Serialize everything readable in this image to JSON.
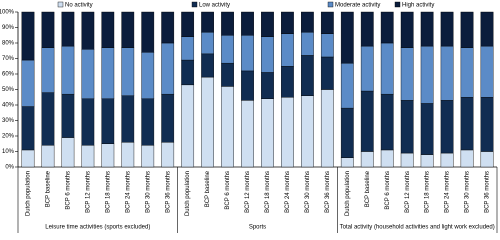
{
  "chart_data": {
    "type": "stacked_bar",
    "groups": [
      {
        "label": "Leisure time activities (sports excluded)",
        "categories": [
          "Dutch population",
          "BCP baseline",
          "BCP 6 months",
          "BCP 12 months",
          "BCP 18 months",
          "BCP 24 months",
          "BCP 30 months",
          "BCP 36 months"
        ]
      },
      {
        "label": "Sports",
        "categories": [
          "Dutch population",
          "BCP baseline",
          "BCP 6 months",
          "BCP 12 months",
          "BCP 18 months",
          "BCP 24 months",
          "BCP 30 months",
          "BCP 36 months"
        ]
      },
      {
        "label": "Total activity (household activities and light work excluded)",
        "categories": [
          "Dutch population",
          "BCP baseline",
          "BCP 6 months",
          "BCP 12 months",
          "BCP 18 months",
          "BCP 24 months",
          "BCP 30 months",
          "BCP 36 months"
        ]
      }
    ],
    "series": [
      {
        "name": "No activity",
        "color": "#cfdff1",
        "values": [
          11,
          14,
          19,
          14,
          15,
          16,
          14,
          16,
          53,
          58,
          52,
          43,
          44,
          45,
          46,
          50,
          6,
          10,
          11,
          9,
          8,
          9,
          11,
          10
        ]
      },
      {
        "name": "Low activity",
        "color": "#112d52",
        "values": [
          28,
          34,
          28,
          30,
          29,
          30,
          30,
          31,
          16,
          15,
          15,
          19,
          17,
          20,
          26,
          21,
          32,
          39,
          36,
          34,
          33,
          34,
          34,
          35
        ]
      },
      {
        "name": "Moderate activity",
        "color": "#5b8bc7",
        "values": [
          30,
          29,
          31,
          32,
          33,
          31,
          30,
          33,
          15,
          14,
          18,
          23,
          23,
          21,
          15,
          15,
          29,
          29,
          33,
          34,
          37,
          35,
          32,
          33
        ]
      },
      {
        "name": "High activity",
        "color": "#0b1d3c",
        "values": [
          31,
          23,
          22,
          24,
          23,
          23,
          26,
          20,
          16,
          13,
          15,
          15,
          16,
          14,
          13,
          14,
          33,
          22,
          20,
          23,
          22,
          22,
          23,
          22
        ]
      }
    ],
    "ylim": [
      0,
      100
    ],
    "yticks": [
      {
        "value": 0,
        "label": "0%"
      },
      {
        "value": 10,
        "label": "10%"
      },
      {
        "value": 20,
        "label": "20%"
      },
      {
        "value": 30,
        "label": "30%"
      },
      {
        "value": 40,
        "label": "40%"
      },
      {
        "value": 50,
        "label": "50%"
      },
      {
        "value": 60,
        "label": "60%"
      },
      {
        "value": 70,
        "label": "70%"
      },
      {
        "value": 80,
        "label": "80%"
      },
      {
        "value": 90,
        "label": "90%"
      },
      {
        "value": 100,
        "label": "100%"
      }
    ],
    "legend": "top"
  }
}
